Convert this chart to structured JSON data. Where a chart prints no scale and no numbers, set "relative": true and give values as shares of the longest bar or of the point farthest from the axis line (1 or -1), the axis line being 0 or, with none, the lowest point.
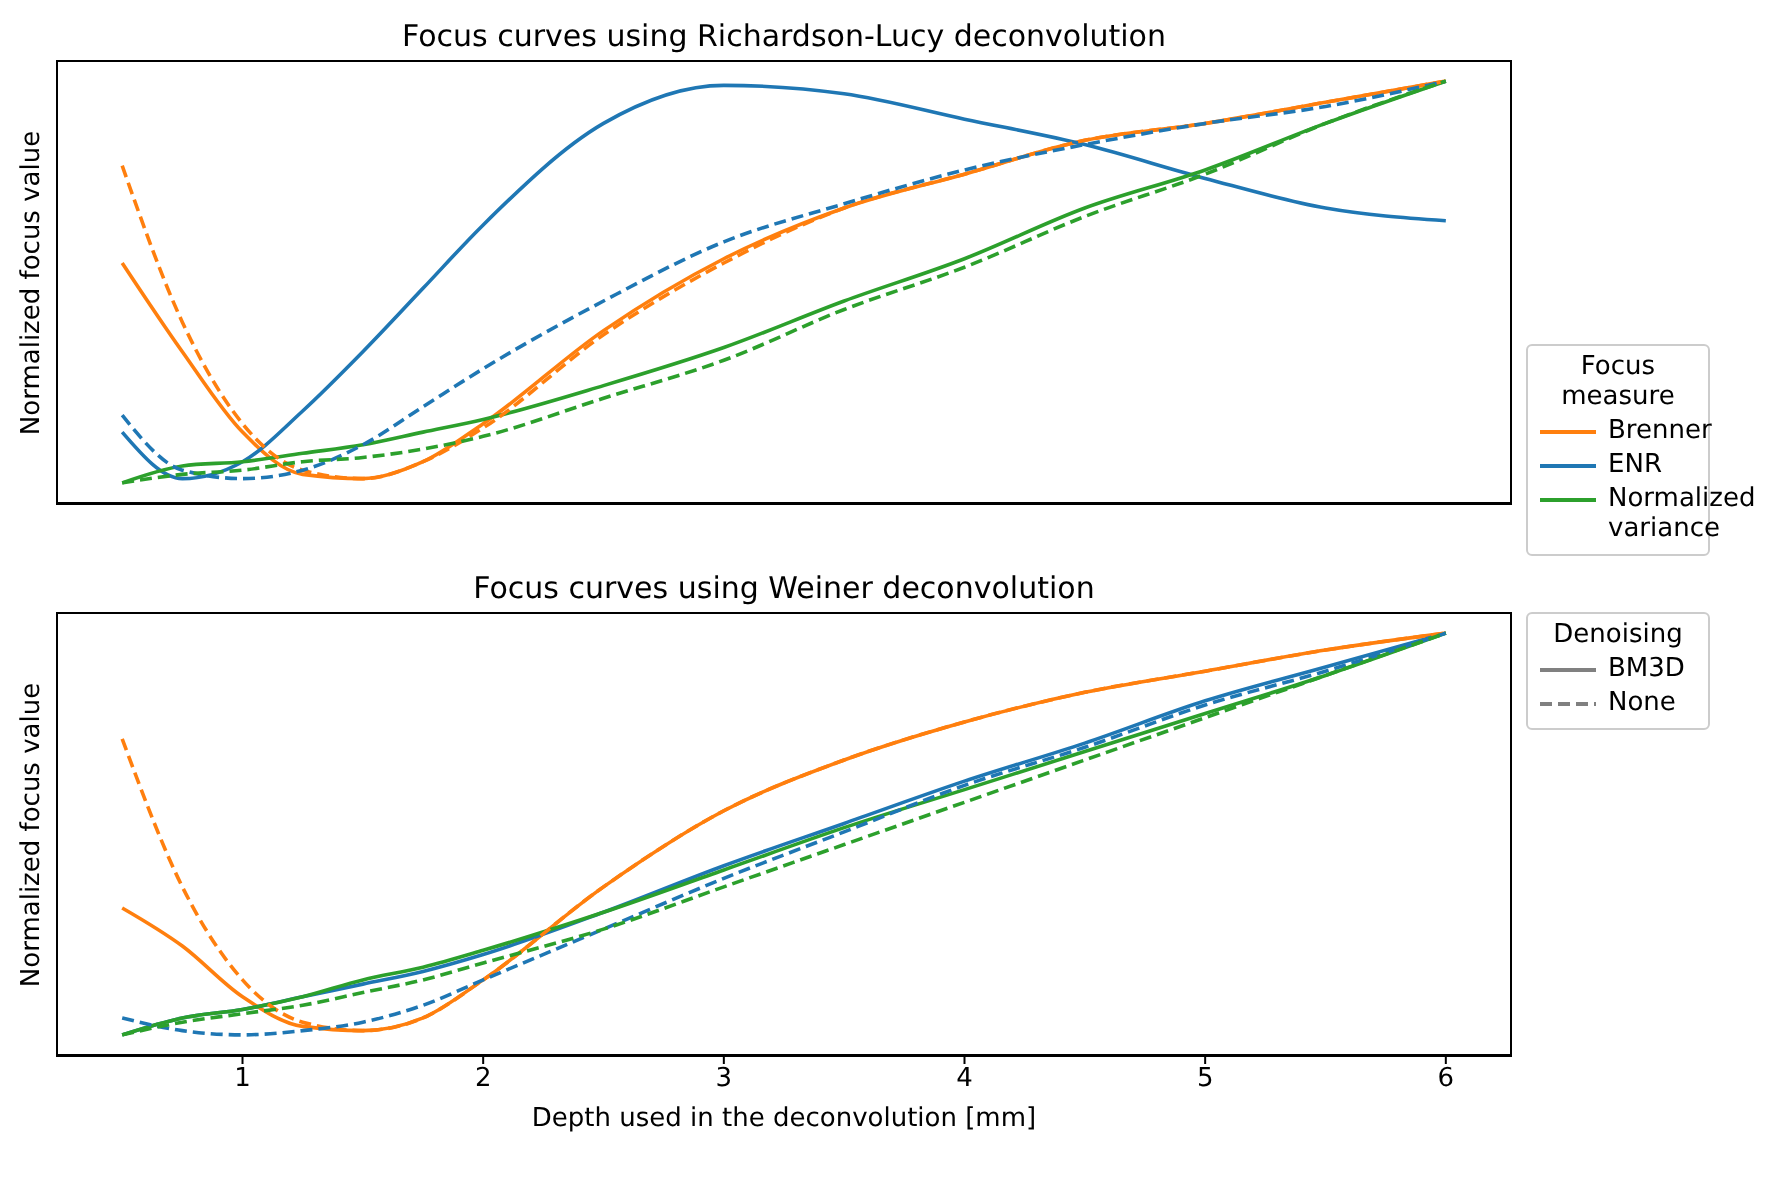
{
  "chart_data": [
    {
      "type": "line",
      "title": "Focus curves using Richardson-Lucy deconvolution",
      "ylabel": "Normalized focus value",
      "relative": true,
      "legend": "bottom right",
      "legend_title": "Focus measure",
      "tick_labels": false,
      "x": [
        0.5,
        0.75,
        1,
        1.25,
        1.5,
        1.75,
        2,
        2.5,
        3,
        3.5,
        4,
        4.5,
        5,
        5.5,
        6
      ],
      "xlim": [
        0.225,
        6.275
      ],
      "xticks": [
        1,
        2,
        3,
        4,
        5,
        6
      ],
      "series": [
        {
          "name": "Brenner",
          "color": "#ff7f0e",
          "line_style": "solid",
          "values": [
            0.57,
            0.36,
            0.17,
            0.07,
            0.06,
            0.1,
            0.19,
            0.41,
            0.58,
            0.7,
            0.78,
            0.86,
            0.9,
            0.95,
            1
          ]
        },
        {
          "name": "ENR",
          "color": "#1f77b4",
          "line_style": "solid",
          "values": [
            0.17,
            0.06,
            0.1,
            0.22,
            0.36,
            0.51,
            0.66,
            0.9,
            0.99,
            0.97,
            0.91,
            0.85,
            0.77,
            0.7,
            0.67
          ]
        },
        {
          "name": "Normalized variance",
          "color": "#2ca02c",
          "line_style": "solid",
          "values": [
            0.05,
            0.09,
            0.1,
            0.12,
            0.14,
            0.17,
            0.2,
            0.28,
            0.37,
            0.48,
            0.58,
            0.7,
            0.79,
            0.9,
            1
          ]
        },
        {
          "color": "#ff7f0e",
          "line_style": "dashed",
          "values": [
            0.8,
            0.43,
            0.19,
            0.08,
            0.06,
            0.1,
            0.18,
            0.4,
            0.57,
            0.7,
            0.78,
            0.86,
            0.9,
            0.95,
            1
          ]
        },
        {
          "color": "#1f77b4",
          "line_style": "dashed",
          "values": [
            0.21,
            0.08,
            0.06,
            0.08,
            0.14,
            0.23,
            0.32,
            0.48,
            0.62,
            0.71,
            0.79,
            0.85,
            0.9,
            0.94,
            1
          ]
        },
        {
          "color": "#2ca02c",
          "line_style": "dashed",
          "values": [
            0.05,
            0.07,
            0.08,
            0.1,
            0.11,
            0.13,
            0.16,
            0.25,
            0.34,
            0.46,
            0.56,
            0.68,
            0.78,
            0.9,
            1
          ]
        }
      ]
    },
    {
      "type": "line",
      "title": "Focus curves using Weiner deconvolution",
      "xlabel": "Depth used in the deconvolution [mm]",
      "ylabel": "Normalized focus value",
      "relative": true,
      "legend": "top right",
      "legend_title": "Denoising",
      "tick_labels": "x",
      "x": [
        0.5,
        0.75,
        1,
        1.25,
        1.5,
        1.75,
        2,
        2.5,
        3,
        3.5,
        4,
        4.5,
        5,
        5.5,
        6
      ],
      "xlim": [
        0.225,
        6.275
      ],
      "xticks": [
        1,
        2,
        3,
        4,
        5,
        6
      ],
      "series": [
        {
          "name": "BM3D",
          "color": "#ff7f0e",
          "line_style": "solid",
          "values": [
            0.35,
            0.26,
            0.14,
            0.07,
            0.06,
            0.09,
            0.18,
            0.4,
            0.58,
            0.7,
            0.79,
            0.86,
            0.91,
            0.96,
            1
          ]
        },
        {
          "color": "#1f77b4",
          "line_style": "solid",
          "values": [
            0.05,
            0.09,
            0.11,
            0.14,
            0.17,
            0.2,
            0.24,
            0.34,
            0.45,
            0.55,
            0.65,
            0.74,
            0.84,
            0.92,
            1
          ]
        },
        {
          "color": "#2ca02c",
          "line_style": "solid",
          "values": [
            0.05,
            0.09,
            0.11,
            0.14,
            0.18,
            0.21,
            0.25,
            0.34,
            0.44,
            0.54,
            0.63,
            0.72,
            0.81,
            0.9,
            1
          ]
        },
        {
          "name": "None",
          "color": "#ff7f0e",
          "line_style": "dashed",
          "values": [
            0.75,
            0.4,
            0.18,
            0.08,
            0.06,
            0.09,
            0.18,
            0.4,
            0.58,
            0.7,
            0.79,
            0.86,
            0.91,
            0.96,
            1
          ]
        },
        {
          "color": "#1f77b4",
          "line_style": "dashed",
          "values": [
            0.09,
            0.06,
            0.05,
            0.06,
            0.08,
            0.12,
            0.18,
            0.3,
            0.42,
            0.53,
            0.64,
            0.73,
            0.83,
            0.91,
            1
          ]
        },
        {
          "color": "#2ca02c",
          "line_style": "dashed",
          "values": [
            0.05,
            0.08,
            0.1,
            0.12,
            0.15,
            0.18,
            0.22,
            0.3,
            0.4,
            0.5,
            0.6,
            0.7,
            0.8,
            0.9,
            1
          ]
        }
      ]
    }
  ]
}
